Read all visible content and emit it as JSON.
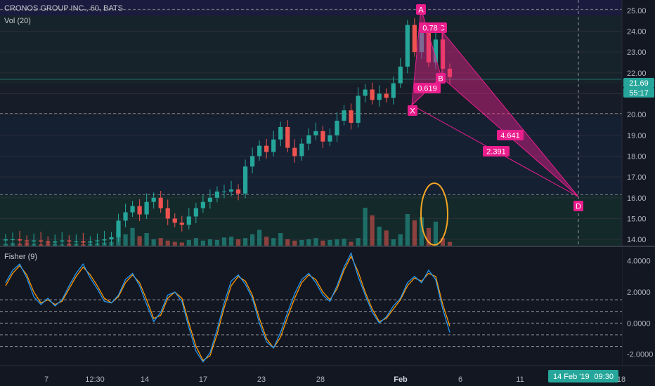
{
  "header": {
    "symbol_title": "CRONOS GROUP INC., 60, BATS",
    "volume_label": "Vol (20)",
    "indicator_label": "Fisher (9)"
  },
  "price_axis": {
    "min": 13.7,
    "max": 25.5,
    "ticks": [
      "25.00",
      "24.00",
      "23.00",
      "22.00",
      "21.00",
      "20.00",
      "19.00",
      "18.00",
      "17.00",
      "16.00",
      "15.00",
      "14.00"
    ],
    "tick_values": [
      25,
      24,
      23,
      22,
      21,
      20,
      19,
      18,
      17,
      16,
      15,
      14
    ],
    "last_price_badge": "21.69",
    "last_price": 21.69,
    "countdown_badge": "55:17"
  },
  "fisher_axis": {
    "min": -2.6,
    "max": 4.8,
    "ticks": [
      "4.0000",
      "2.0000",
      "0.0000",
      "-2.0000"
    ],
    "tick_values": [
      4,
      2,
      0,
      -2
    ],
    "levels": [
      1.5,
      0.75,
      0,
      -0.75,
      -1.5
    ]
  },
  "time_axis": {
    "labels": [
      "7",
      "12:30",
      "14",
      "17",
      "23",
      "28",
      "Feb",
      "6",
      "11",
      "14 Feb '19",
      "09:30",
      "18"
    ],
    "highlighted": "Feb",
    "crosshair_date": "14 Feb '19",
    "crosshair_time": "09:30"
  },
  "harmonic": {
    "points": [
      {
        "name": "X",
        "label": "X",
        "price": 20.45
      },
      {
        "name": "A",
        "label": "A",
        "price": 25.1
      },
      {
        "name": "B",
        "label": "B",
        "price": 21.8
      },
      {
        "name": "C",
        "label": "C",
        "price": 24.0
      },
      {
        "name": "D",
        "label": "D",
        "price": 16.05
      }
    ],
    "ratios": [
      {
        "label": "0.78",
        "of": "BC"
      },
      {
        "label": "0.619",
        "of": "XB"
      },
      {
        "label": "4.641",
        "of": "CD"
      },
      {
        "label": "2.391",
        "of": "XD"
      }
    ]
  },
  "colors": {
    "background": "#131722",
    "up": "#26a69a",
    "down": "#ef5350",
    "pattern": "#e91e8c",
    "fisher": "#2196f3",
    "trigger": "#ff9800",
    "highlight_ellipse": "#f5a623",
    "badge": "#26a69a"
  },
  "chart_data": {
    "type": "candlestick",
    "title": "CRONOS GROUP INC., 60, BATS",
    "ylim": [
      13.7,
      25.5
    ],
    "close_series_approx": [
      14.0,
      14.0,
      13.95,
      13.9,
      13.95,
      13.9,
      13.85,
      13.9,
      13.95,
      13.9,
      13.9,
      13.85,
      13.9,
      13.95,
      14.0,
      14.1,
      14.9,
      15.3,
      15.6,
      15.2,
      15.8,
      16.0,
      15.5,
      15.0,
      14.8,
      14.7,
      15.1,
      15.5,
      15.8,
      16.0,
      16.3,
      16.3,
      16.4,
      16.2,
      17.5,
      18.0,
      18.5,
      18.2,
      18.8,
      19.4,
      18.4,
      18.0,
      18.6,
      19.0,
      19.2,
      18.7,
      19.0,
      19.7,
      20.2,
      19.6,
      20.9,
      21.2,
      20.7,
      21.0,
      20.8,
      21.5,
      22.3,
      24.3,
      23.0,
      24.0,
      22.5,
      23.6,
      22.2,
      21.8
    ],
    "volume": {
      "series_name": "Vol (20)",
      "ylim_note": "relative",
      "values_approx": [
        0.03,
        0.04,
        0.03,
        0.05,
        0.03,
        0.02,
        0.04,
        0.03,
        0.02,
        0.03,
        0.03,
        0.02,
        0.03,
        0.04,
        0.05,
        0.06,
        0.22,
        0.18,
        0.28,
        0.15,
        0.2,
        0.1,
        0.12,
        0.08,
        0.06,
        0.05,
        0.09,
        0.12,
        0.08,
        0.1,
        0.09,
        0.13,
        0.14,
        0.1,
        0.12,
        0.18,
        0.25,
        0.14,
        0.12,
        0.2,
        0.1,
        0.08,
        0.09,
        0.1,
        0.12,
        0.08,
        0.09,
        0.1,
        0.11,
        0.06,
        0.12,
        0.6,
        0.48,
        0.3,
        0.24,
        0.1,
        0.18,
        0.5,
        0.4,
        0.45,
        0.28,
        0.38,
        0.12,
        0.06
      ]
    },
    "fisher": {
      "series": [
        {
          "values_approx": [
            2.6,
            3.4,
            3.8,
            2.9,
            1.7,
            1.2,
            1.6,
            1.1,
            1.5,
            2.4,
            3.2,
            3.8,
            2.9,
            2.2,
            1.4,
            1.3,
            1.8,
            2.8,
            3.2,
            2.4,
            1.2,
            0.1,
            0.7,
            1.8,
            2.0,
            1.4,
            -0.3,
            -1.8,
            -2.5,
            -1.9,
            -0.4,
            1.3,
            2.7,
            3.1,
            2.5,
            1.6,
            0.0,
            -1.2,
            -1.6,
            -0.6,
            0.7,
            1.9,
            2.8,
            3.2,
            2.6,
            1.8,
            1.4,
            2.4,
            3.6,
            4.5,
            3.0,
            1.8,
            0.7,
            0.0,
            0.4,
            1.1,
            1.6,
            2.6,
            3.0,
            2.6,
            3.4,
            2.8,
            0.9,
            -0.6
          ]
        },
        {
          "values_approx": [
            2.4,
            3.2,
            3.7,
            3.1,
            2.0,
            1.3,
            1.5,
            1.2,
            1.4,
            2.2,
            3.0,
            3.6,
            3.1,
            2.4,
            1.6,
            1.3,
            1.7,
            2.6,
            3.1,
            2.6,
            1.5,
            0.3,
            0.5,
            1.6,
            2.0,
            1.6,
            0.0,
            -1.5,
            -2.4,
            -2.1,
            -0.7,
            1.0,
            2.4,
            3.0,
            2.7,
            1.8,
            0.3,
            -1.0,
            -1.6,
            -0.9,
            0.4,
            1.6,
            2.6,
            3.1,
            2.8,
            2.0,
            1.5,
            2.2,
            3.4,
            4.3,
            3.3,
            2.0,
            0.9,
            0.1,
            0.3,
            0.9,
            1.5,
            2.4,
            2.9,
            2.7,
            3.2,
            3.0,
            1.2,
            -0.2
          ]
        }
      ]
    }
  }
}
